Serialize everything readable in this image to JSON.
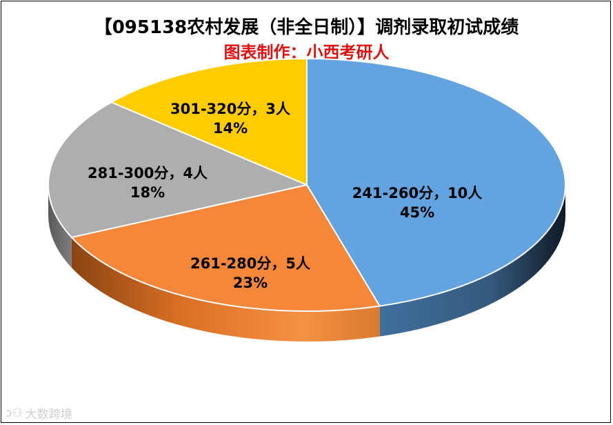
{
  "chart_data": {
    "type": "pie",
    "title": "【095138农村发展（非全日制）】调剂录取初试成绩",
    "subtitle": "图表制作：小西考研人",
    "slices": [
      {
        "label": "241-260分，10人",
        "pct": "45%",
        "value": 10,
        "color": "#62a3e0"
      },
      {
        "label": "261-280分，5人",
        "pct": "23%",
        "value": 5,
        "color": "#f5873a"
      },
      {
        "label": "281-300分，4人",
        "pct": "18%",
        "value": 4,
        "color": "#aeaeae"
      },
      {
        "label": "301-320分，3人",
        "pct": "14%",
        "value": 3,
        "color": "#ffcc00"
      }
    ]
  },
  "watermark": "大数跨境"
}
